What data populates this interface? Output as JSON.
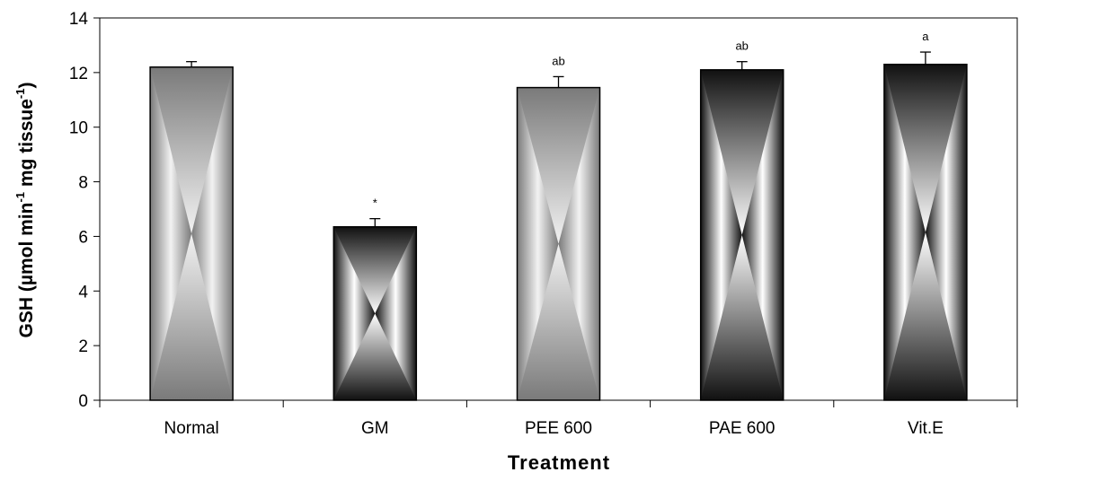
{
  "chart_data": {
    "type": "bar",
    "title": "",
    "xlabel": "Treatment",
    "ylabel": {
      "parts": [
        "GSH (µmol min",
        "-1",
        " mg tissue",
        "-1",
        ")"
      ]
    },
    "categories": [
      "Normal",
      "GM",
      "PEE 600",
      "PAE 600",
      "Vit.E"
    ],
    "values": [
      12.2,
      6.35,
      11.45,
      12.1,
      12.3
    ],
    "errors": [
      0.2,
      0.3,
      0.4,
      0.3,
      0.45
    ],
    "annotations": [
      "",
      "*",
      "ab",
      "ab",
      "a"
    ],
    "fill_styles": [
      "grey",
      "dark",
      "grey",
      "dark",
      "dark"
    ],
    "ylim": [
      0,
      14
    ],
    "yticks": [
      0,
      2,
      4,
      6,
      8,
      10,
      12,
      14
    ],
    "grid": false,
    "legend": "none"
  }
}
